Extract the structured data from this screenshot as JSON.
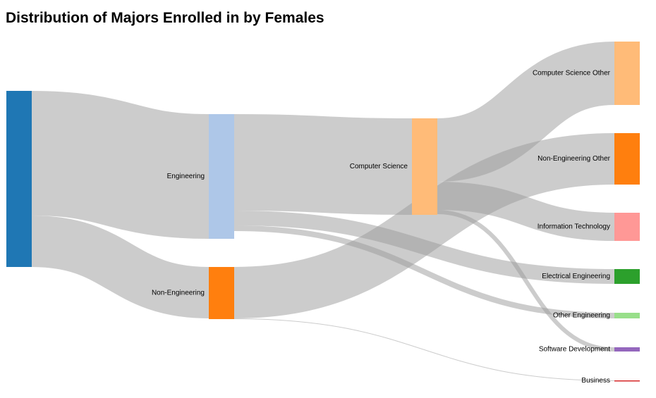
{
  "chart_data": {
    "type": "sankey",
    "title": "Distribution of Majors Enrolled in by Females",
    "link_color": "#999999",
    "nodes": [
      {
        "id": "root",
        "label": "",
        "color": "#1f77b4"
      },
      {
        "id": "eng",
        "label": "Engineering",
        "color": "#aec7e8"
      },
      {
        "id": "noneng",
        "label": "Non-Engineering",
        "color": "#ff7f0e"
      },
      {
        "id": "cs",
        "label": "Computer Science",
        "color": "#ffbb78"
      },
      {
        "id": "cso",
        "label": "Computer Science Other",
        "color": "#ffbb78"
      },
      {
        "id": "neo",
        "label": "Non-Engineering Other",
        "color": "#ff7f0e"
      },
      {
        "id": "it",
        "label": "Information Technology",
        "color": "#ff9896"
      },
      {
        "id": "ee",
        "label": "Electrical Engineering",
        "color": "#2ca02c"
      },
      {
        "id": "oe",
        "label": "Other Engineering",
        "color": "#98df8a"
      },
      {
        "id": "sd",
        "label": "Software Development",
        "color": "#9467bd"
      },
      {
        "id": "bus",
        "label": "Business",
        "color": "#d62728"
      }
    ],
    "links": [
      {
        "source": "root",
        "target": "eng",
        "value": 177
      },
      {
        "source": "root",
        "target": "noneng",
        "value": 73
      },
      {
        "source": "eng",
        "target": "cs",
        "value": 137
      },
      {
        "source": "eng",
        "target": "ee",
        "value": 21
      },
      {
        "source": "eng",
        "target": "oe",
        "value": 8
      },
      {
        "source": "noneng",
        "target": "neo",
        "value": 73
      },
      {
        "source": "noneng",
        "target": "bus",
        "value": 1
      },
      {
        "source": "cs",
        "target": "cso",
        "value": 90
      },
      {
        "source": "cs",
        "target": "it",
        "value": 40
      },
      {
        "source": "cs",
        "target": "sd",
        "value": 6
      }
    ]
  }
}
